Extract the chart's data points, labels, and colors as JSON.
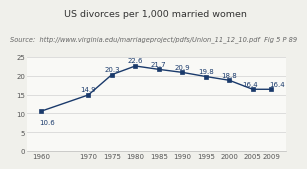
{
  "title": "US divorces per 1,000 married women",
  "source": "Source:  http://www.virginia.edu/marriageproject/pdfs/Union_11_12_10.pdf  Fig 5 P 89",
  "x": [
    1960,
    1970,
    1975,
    1980,
    1985,
    1990,
    1995,
    2000,
    2005,
    2009
  ],
  "y": [
    10.6,
    14.9,
    20.3,
    22.6,
    21.7,
    20.9,
    19.8,
    18.8,
    16.4,
    16.4
  ],
  "line_color": "#1a3a6b",
  "marker": "s",
  "marker_size": 3.0,
  "ylim": [
    0,
    25
  ],
  "yticks": [
    0,
    5,
    10,
    15,
    20,
    25
  ],
  "xlim": [
    1957,
    2012
  ],
  "xticks": [
    1960,
    1970,
    1975,
    1980,
    1985,
    1990,
    1995,
    2000,
    2005,
    2009
  ],
  "bg_color": "#f0f0eb",
  "plot_bg_color": "#f9f9f6",
  "grid_color": "#d8d8d8",
  "title_fontsize": 6.8,
  "source_fontsize": 4.8,
  "label_fontsize": 5.0,
  "tick_fontsize": 5.0,
  "label_offsets_x": [
    1960,
    1970,
    1975,
    1980,
    1985,
    1990,
    1995,
    2000,
    2005,
    2009
  ],
  "label_offsets_y_pts": [
    -8,
    4,
    4,
    4,
    4,
    4,
    4,
    4,
    4,
    4
  ],
  "label_offsets_x_pts": [
    4,
    0,
    0,
    0,
    0,
    0,
    0,
    0,
    -2,
    4
  ]
}
